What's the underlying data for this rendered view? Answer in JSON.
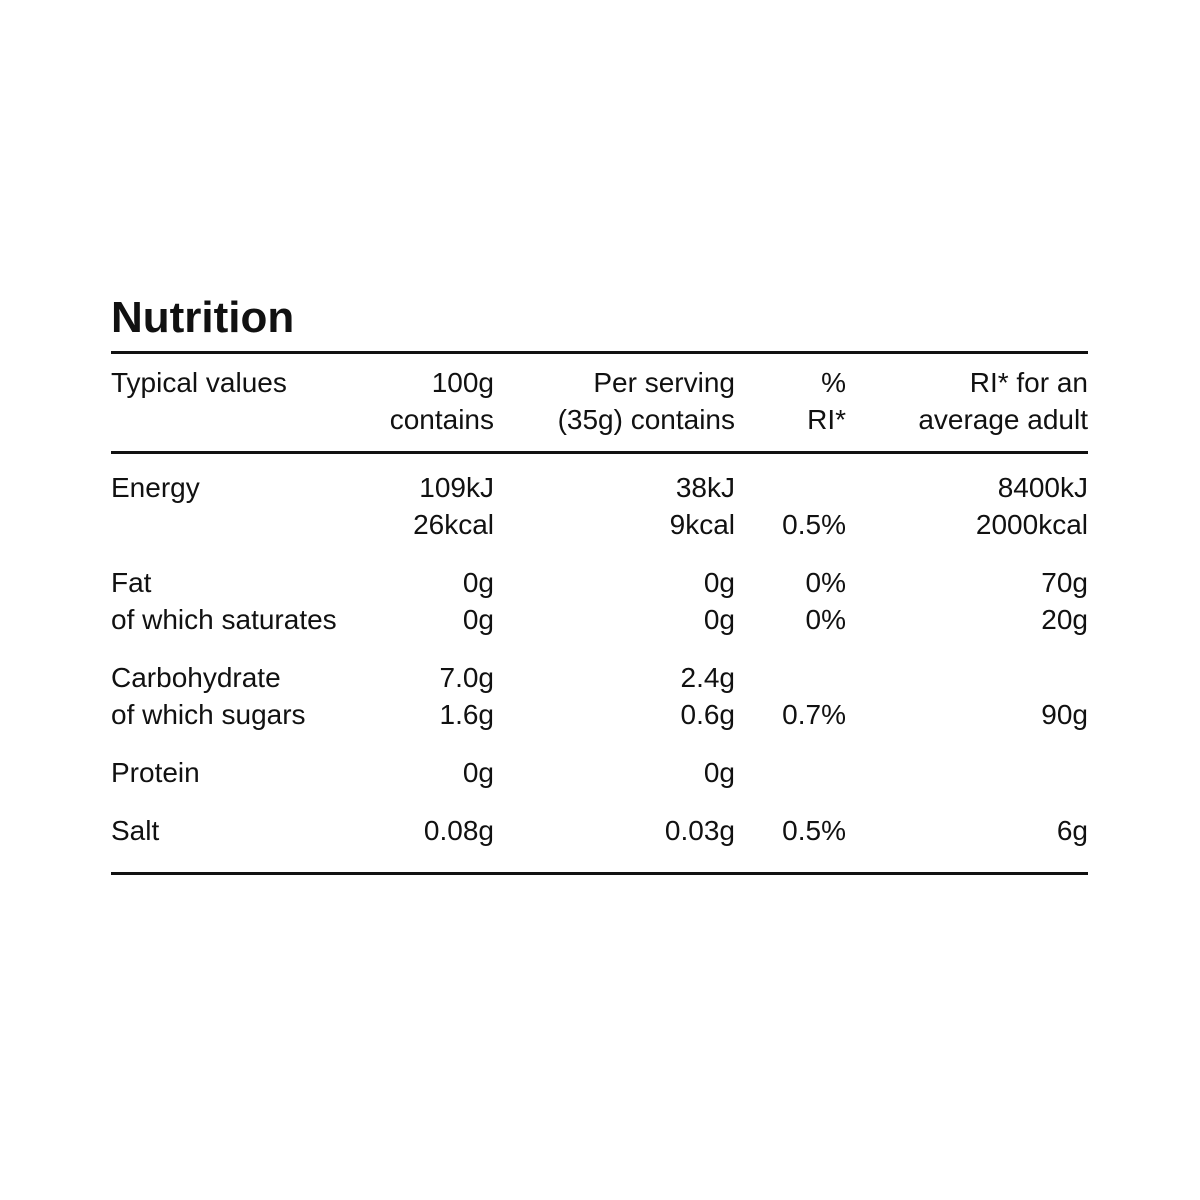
{
  "title": "Nutrition",
  "table": {
    "header": [
      [
        "Typical values"
      ],
      [
        "100g",
        "contains"
      ],
      [
        "Per serving",
        "(35g) contains"
      ],
      [
        "%",
        "RI*"
      ],
      [
        "RI* for an",
        "average adult"
      ]
    ],
    "groups": [
      [
        [
          "Energy",
          "109kJ",
          "38kJ",
          null,
          "8400kJ"
        ],
        [
          null,
          "26kcal",
          "9kcal",
          "0.5%",
          "2000kcal"
        ]
      ],
      [
        [
          "Fat",
          "0g",
          "0g",
          "0%",
          "70g"
        ],
        [
          "of which saturates",
          "0g",
          "0g",
          "0%",
          "20g"
        ]
      ],
      [
        [
          "Carbohydrate",
          "7.0g",
          "2.4g",
          null,
          null
        ],
        [
          "of which sugars",
          "1.6g",
          "0.6g",
          "0.7%",
          "90g"
        ]
      ],
      [
        [
          "Protein",
          "0g",
          "0g",
          null,
          null
        ]
      ],
      [
        [
          "Salt",
          "0.08g",
          "0.03g",
          "0.5%",
          "6g"
        ]
      ]
    ]
  }
}
